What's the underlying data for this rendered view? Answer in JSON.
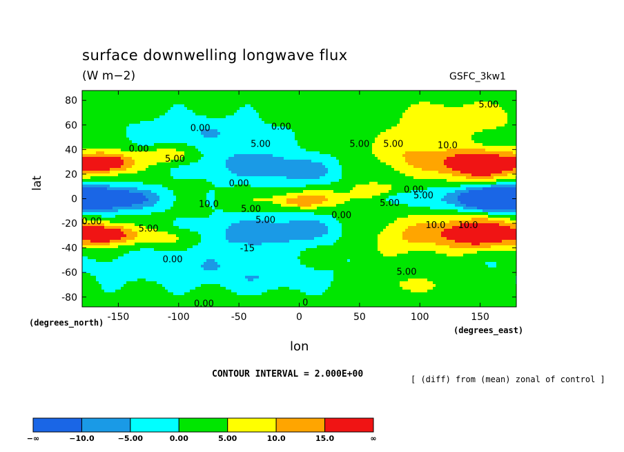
{
  "chart_data": {
    "type": "heatmap",
    "title": "surface downwelling longwave flux",
    "subtitle": "(W m−2)",
    "dataset": "GSFC_3kw1",
    "xlabel": "lon",
    "ylabel": "lat",
    "x_units": "(degrees_east)",
    "y_units": "(degrees_north)",
    "xlim": [
      -180,
      180
    ],
    "ylim": [
      -90,
      90
    ],
    "x_ticks": [
      -150,
      -100,
      -50,
      0,
      50,
      100,
      150
    ],
    "y_ticks": [
      80,
      60,
      40,
      20,
      0,
      -20,
      -40,
      -60,
      -80
    ],
    "contour_interval_text": "CONTOUR INTERVAL = 2.000E+00",
    "note": "[ (diff) from (mean) zonal of control ]",
    "contour_labels": [
      {
        "text": "5.00",
        "lon": 157,
        "lat": 77
      },
      {
        "text": "0.00",
        "lon": -82,
        "lat": 58
      },
      {
        "text": "0.00",
        "lon": -15,
        "lat": 59
      },
      {
        "text": "0.00",
        "lon": -133,
        "lat": 41
      },
      {
        "text": "5.00",
        "lon": -32,
        "lat": 45
      },
      {
        "text": "5.00",
        "lon": 50,
        "lat": 45
      },
      {
        "text": "5.00",
        "lon": 78,
        "lat": 45
      },
      {
        "text": "10.0",
        "lon": 123,
        "lat": 44
      },
      {
        "text": "5.00",
        "lon": -103,
        "lat": 33
      },
      {
        "text": "0.00",
        "lon": -50,
        "lat": 13
      },
      {
        "text": "0.00",
        "lon": 95,
        "lat": 8
      },
      {
        "text": "5.00",
        "lon": 103,
        "lat": 3
      },
      {
        "text": "10.0",
        "lon": -75,
        "lat": -4
      },
      {
        "text": "5.00",
        "lon": -40,
        "lat": -8
      },
      {
        "text": "5.00",
        "lon": 75,
        "lat": -3
      },
      {
        "text": "0.00",
        "lon": 35,
        "lat": -13
      },
      {
        "text": "5.00",
        "lon": -28,
        "lat": -17
      },
      {
        "text": "0.00",
        "lon": -172,
        "lat": -18
      },
      {
        "text": "5.00",
        "lon": -125,
        "lat": -24
      },
      {
        "text": "10.0",
        "lon": 113,
        "lat": -21
      },
      {
        "text": "10.0",
        "lon": 140,
        "lat": -21
      },
      {
        "text": "-15",
        "lon": -43,
        "lat": -40
      },
      {
        "text": "0.00",
        "lon": -105,
        "lat": -49
      },
      {
        "text": "5.00",
        "lon": 89,
        "lat": -59
      },
      {
        "text": "0.00",
        "lon": -79,
        "lat": -85
      },
      {
        "text": "0",
        "lon": 5,
        "lat": -84
      }
    ],
    "levels": [
      -10,
      -5,
      0,
      5,
      10,
      15
    ],
    "colorbar": {
      "colors": [
        "#1a66e6",
        "#1a9ae6",
        "#00ffff",
        "#00e600",
        "#ffff00",
        "#ffa500",
        "#f01414"
      ],
      "labels": [
        "−∞",
        "−10.0",
        "−5.00",
        "0.00",
        "5.00",
        "10.0",
        "15.0",
        "∞"
      ]
    },
    "regions": [
      {
        "lon": -155,
        "lat": 0,
        "dlon": 40,
        "dlat": 9,
        "value": -16
      },
      {
        "lon": 155,
        "lat": 0,
        "dlon": 40,
        "dlat": 9,
        "value": -16
      },
      {
        "lon": 175,
        "lat": 0,
        "dlon": 30,
        "dlat": 10,
        "value": -14
      },
      {
        "lon": -40,
        "lat": 28,
        "dlon": 45,
        "dlat": 14,
        "value": -9
      },
      {
        "lon": 5,
        "lat": 22,
        "dlon": 30,
        "dlat": 10,
        "value": -7
      },
      {
        "lon": -40,
        "lat": -28,
        "dlon": 45,
        "dlat": 14,
        "value": -9
      },
      {
        "lon": 5,
        "lat": -25,
        "dlon": 30,
        "dlat": 10,
        "value": -7
      },
      {
        "lon": -85,
        "lat": 55,
        "dlon": 55,
        "dlat": 12,
        "value": -6
      },
      {
        "lon": -100,
        "lat": -55,
        "dlon": 70,
        "dlat": 13,
        "value": -6
      },
      {
        "lon": -20,
        "lat": -65,
        "dlon": 50,
        "dlat": 10,
        "value": -5
      },
      {
        "lon": 10,
        "lat": 0,
        "dlon": 45,
        "dlat": 7,
        "value": 8
      },
      {
        "lon": 0,
        "lat": -3,
        "dlon": 15,
        "dlat": 4,
        "value": 7
      },
      {
        "lon": -160,
        "lat": 29,
        "dlon": 22,
        "dlat": 8,
        "value": 21
      },
      {
        "lon": -160,
        "lat": -29,
        "dlon": 22,
        "dlat": 8,
        "value": 21
      },
      {
        "lon": 148,
        "lat": 28,
        "dlon": 34,
        "dlat": 12,
        "value": 23
      },
      {
        "lon": 148,
        "lat": -28,
        "dlon": 34,
        "dlat": 12,
        "value": 23
      },
      {
        "lon": 90,
        "lat": 36,
        "dlon": 32,
        "dlat": 16,
        "value": 8
      },
      {
        "lon": 90,
        "lat": -30,
        "dlon": 32,
        "dlat": 16,
        "value": 8
      },
      {
        "lon": 130,
        "lat": 65,
        "dlon": 50,
        "dlat": 14,
        "value": 8
      },
      {
        "lon": -110,
        "lat": 35,
        "dlon": 25,
        "dlat": 7,
        "value": 8
      },
      {
        "lon": -110,
        "lat": -32,
        "dlon": 25,
        "dlat": 7,
        "value": 7
      },
      {
        "lon": 90,
        "lat": -70,
        "dlon": 50,
        "dlat": 8,
        "value": 4
      },
      {
        "lon": 60,
        "lat": 8,
        "dlon": 20,
        "dlat": 6,
        "value": 6
      },
      {
        "lon": 80,
        "lat": 0,
        "dlon": 15,
        "dlat": 5,
        "value": -6
      }
    ]
  }
}
